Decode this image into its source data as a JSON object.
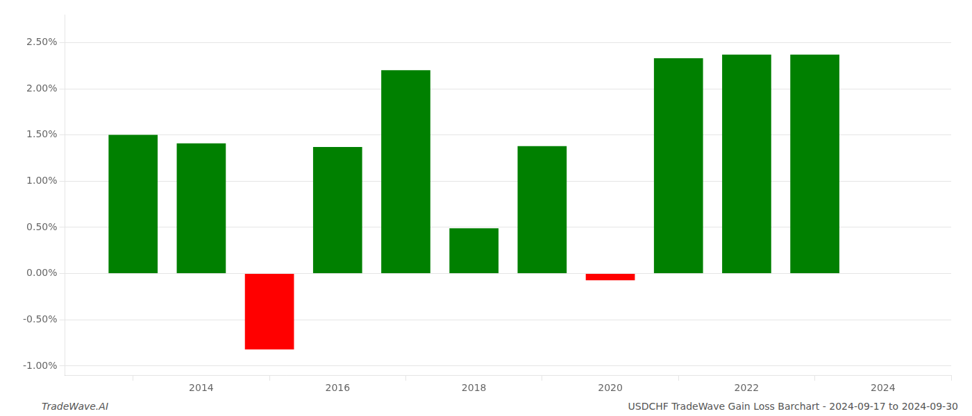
{
  "chart_data": {
    "type": "bar",
    "x": [
      2013,
      2014,
      2015,
      2016,
      2017,
      2018,
      2019,
      2020,
      2021,
      2022,
      2023
    ],
    "values": [
      1.502,
      1.41,
      -0.82,
      1.37,
      2.2,
      0.49,
      1.38,
      -0.072,
      2.33,
      2.37,
      2.37
    ],
    "colors": [
      "#008000",
      "#008000",
      "#ff0000",
      "#008000",
      "#008000",
      "#008000",
      "#008000",
      "#ff0000",
      "#008000",
      "#008000",
      "#008000"
    ],
    "xlim": [
      2012,
      2025
    ],
    "xticks": [
      2014,
      2016,
      2018,
      2020,
      2022,
      2024
    ],
    "ylim": [
      -1.1,
      2.8
    ],
    "yticks": [
      {
        "value": -1.0,
        "label": "-1.00%"
      },
      {
        "value": -0.5,
        "label": "-0.50%"
      },
      {
        "value": 0.0,
        "label": "0.00%"
      },
      {
        "value": 0.5,
        "label": "0.50%"
      },
      {
        "value": 1.0,
        "label": "1.00%"
      },
      {
        "value": 1.5,
        "label": "1.50%"
      },
      {
        "value": 2.0,
        "label": "2.00%"
      },
      {
        "value": 2.5,
        "label": "2.50%"
      }
    ],
    "grid": true,
    "annotations": [
      "TradeWave.AI",
      "USDCHF TradeWave Gain Loss Barchart - 2024-09-17 to 2024-09-30"
    ]
  }
}
